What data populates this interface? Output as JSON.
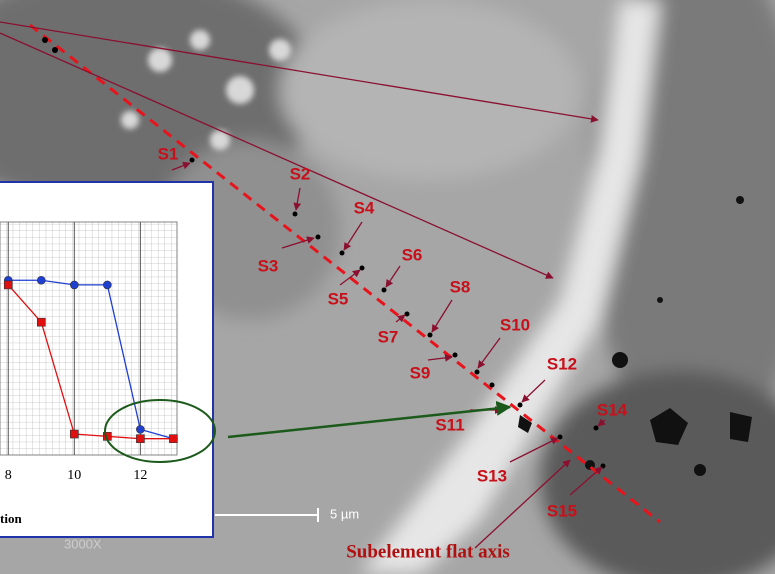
{
  "chart_data": {
    "type": "line",
    "xlim": [
      7.75,
      13.2
    ],
    "xticks": [
      8,
      10,
      12
    ],
    "ylim": [
      0,
      100
    ],
    "x_label": "tion",
    "grid": true,
    "x": [
      8,
      9,
      10,
      11,
      12,
      13
    ],
    "series": [
      {
        "color": "#1f3fd0",
        "marker": "circle",
        "values": [
          75,
          75,
          73,
          73,
          11,
          7
        ]
      },
      {
        "color": "#e01010",
        "marker": "square",
        "values": [
          73,
          57,
          9,
          8,
          7,
          7
        ]
      }
    ]
  },
  "annotations": {
    "labels": [
      "S1",
      "S2",
      "S3",
      "S4",
      "S5",
      "S6",
      "S7",
      "S8",
      "S9",
      "S10",
      "S11",
      "S12",
      "S13",
      "S14",
      "S15"
    ],
    "axis_caption": "Subelement flat axis",
    "scale_bar": "5 µm",
    "magnification": "3000X"
  }
}
